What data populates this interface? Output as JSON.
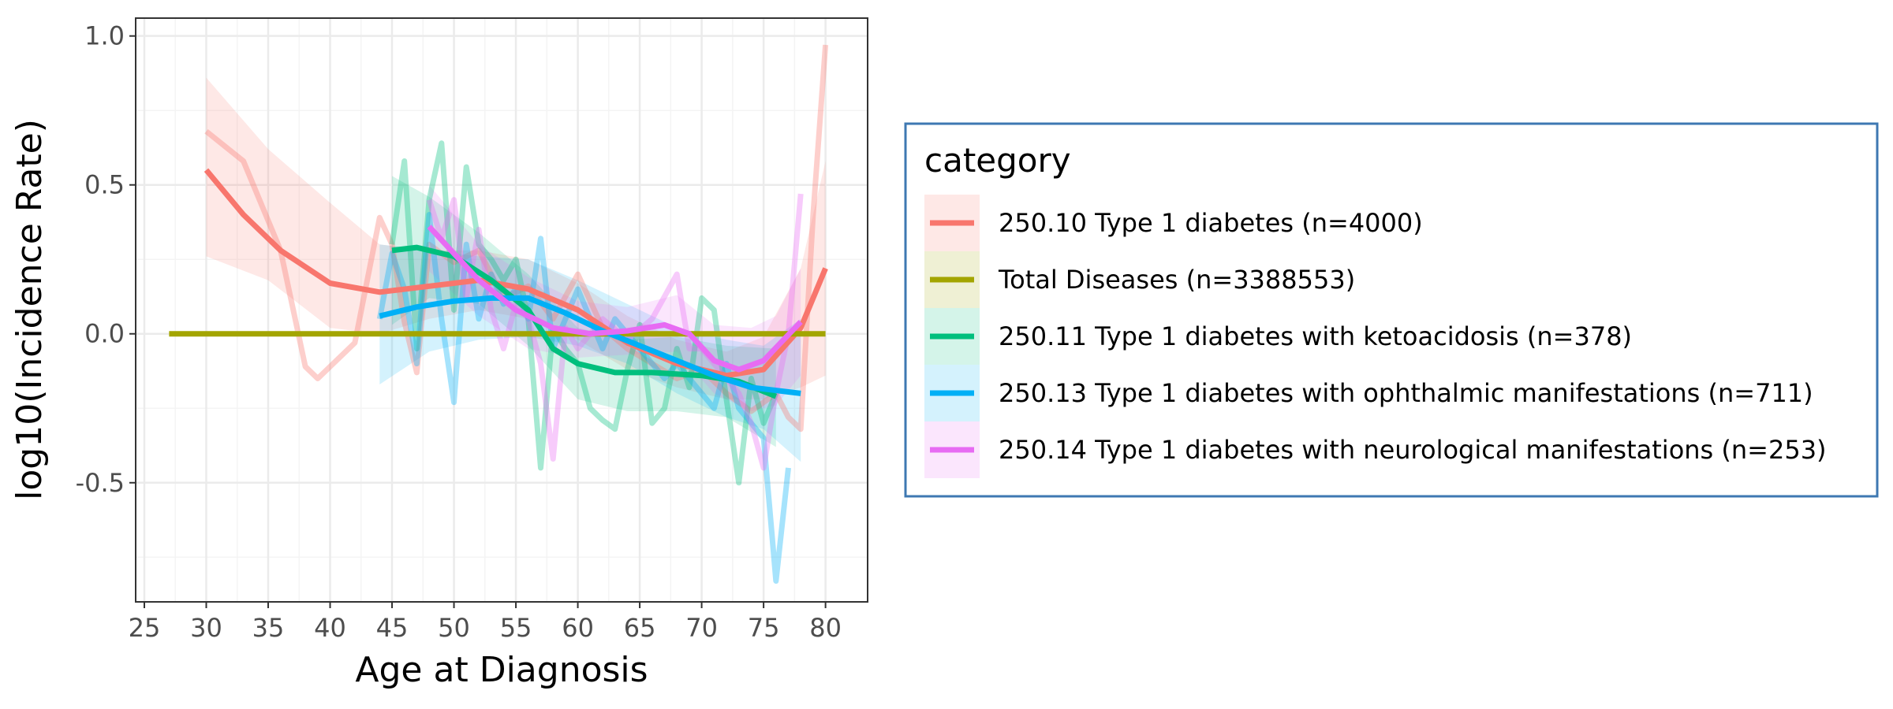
{
  "chart_data": {
    "type": "line",
    "xlabel": "Age at Diagnosis",
    "ylabel": "log10(Incidence Rate)",
    "xlim": [
      24.3,
      83.4
    ],
    "ylim": [
      -0.9,
      1.06
    ],
    "x_ticks": [
      25,
      30,
      35,
      40,
      45,
      50,
      55,
      60,
      65,
      70,
      75,
      80
    ],
    "y_ticks": [
      1.0,
      0.5,
      0.0,
      -0.5
    ],
    "y_tick_labels": [
      "1.0",
      "0.5",
      "0.0",
      "-0.5"
    ],
    "grid": true,
    "legend": {
      "title": "category",
      "position": "right",
      "entries": [
        "250.10 Type 1 diabetes (n=4000)",
        "Total Diseases (n=3388553)",
        "250.11 Type 1 diabetes with ketoacidosis (n=378)",
        "250.13 Type 1 diabetes with ophthalmic manifestations (n=711)",
        "250.14 Type 1 diabetes with neurological manifestations (n=253)"
      ]
    },
    "series": [
      {
        "name": "250.10 Type 1 diabetes (n=4000)",
        "color": "#F8766D",
        "raw": [
          [
            30,
            0.68
          ],
          [
            33,
            0.58
          ],
          [
            36,
            0.28
          ],
          [
            38,
            -0.11
          ],
          [
            39,
            -0.15
          ],
          [
            42,
            -0.03
          ],
          [
            44,
            0.39
          ],
          [
            45,
            0.3
          ],
          [
            46,
            0.04
          ],
          [
            47,
            -0.13
          ],
          [
            48,
            0.3
          ],
          [
            50,
            0.24
          ],
          [
            52,
            0.28
          ],
          [
            54,
            0.12
          ],
          [
            56,
            0.16
          ],
          [
            58,
            0.05
          ],
          [
            60,
            0.2
          ],
          [
            62,
            0.02
          ],
          [
            64,
            -0.05
          ],
          [
            66,
            -0.1
          ],
          [
            68,
            -0.15
          ],
          [
            70,
            -0.12
          ],
          [
            72,
            -0.2
          ],
          [
            74,
            -0.26
          ],
          [
            76,
            -0.2
          ],
          [
            77,
            -0.28
          ],
          [
            78,
            -0.32
          ],
          [
            79,
            0.4
          ],
          [
            80,
            0.97
          ]
        ],
        "smooth": [
          [
            30,
            0.55
          ],
          [
            33,
            0.4
          ],
          [
            36,
            0.28
          ],
          [
            40,
            0.17
          ],
          [
            44,
            0.14
          ],
          [
            48,
            0.16
          ],
          [
            52,
            0.18
          ],
          [
            56,
            0.15
          ],
          [
            60,
            0.08
          ],
          [
            64,
            -0.03
          ],
          [
            68,
            -0.1
          ],
          [
            72,
            -0.14
          ],
          [
            75,
            -0.12
          ],
          [
            78,
            0.02
          ],
          [
            80,
            0.22
          ]
        ],
        "band": [
          [
            30,
            0.86,
            0.26
          ],
          [
            35,
            0.62,
            0.18
          ],
          [
            40,
            0.44,
            0.02
          ],
          [
            44,
            0.3,
            0.0
          ],
          [
            48,
            0.28,
            0.05
          ],
          [
            52,
            0.28,
            0.08
          ],
          [
            56,
            0.25,
            0.05
          ],
          [
            60,
            0.17,
            -0.02
          ],
          [
            64,
            0.06,
            -0.12
          ],
          [
            68,
            -0.02,
            -0.18
          ],
          [
            72,
            -0.06,
            -0.22
          ],
          [
            75,
            -0.01,
            -0.22
          ],
          [
            78,
            0.22,
            -0.18
          ],
          [
            80,
            0.58,
            -0.14
          ]
        ]
      },
      {
        "name": "Total Diseases (n=3388553)",
        "color": "#A3A500",
        "raw": [
          [
            27,
            0.0
          ],
          [
            80,
            0.0
          ]
        ],
        "smooth": [
          [
            27,
            0.0
          ],
          [
            80,
            0.0
          ]
        ],
        "band": []
      },
      {
        "name": "250.11 Type 1 diabetes with ketoacidosis (n=378)",
        "color": "#00BF7D",
        "raw": [
          [
            45,
            0.3
          ],
          [
            46,
            0.58
          ],
          [
            47,
            -0.05
          ],
          [
            48,
            0.45
          ],
          [
            49,
            0.64
          ],
          [
            50,
            0.08
          ],
          [
            51,
            0.56
          ],
          [
            52,
            0.3
          ],
          [
            53,
            0.25
          ],
          [
            54,
            0.18
          ],
          [
            55,
            0.25
          ],
          [
            56,
            0.05
          ],
          [
            57,
            -0.45
          ],
          [
            58,
            0.02
          ],
          [
            59,
            -0.05
          ],
          [
            60,
            -0.1
          ],
          [
            61,
            -0.25
          ],
          [
            62,
            -0.29
          ],
          [
            63,
            -0.32
          ],
          [
            64,
            -0.12
          ],
          [
            65,
            0.03
          ],
          [
            66,
            -0.3
          ],
          [
            67,
            -0.25
          ],
          [
            68,
            -0.05
          ],
          [
            69,
            -0.18
          ],
          [
            70,
            0.12
          ],
          [
            71,
            0.08
          ],
          [
            72,
            -0.22
          ],
          [
            73,
            -0.5
          ],
          [
            74,
            -0.15
          ],
          [
            75,
            -0.3
          ],
          [
            76,
            -0.2
          ]
        ],
        "smooth": [
          [
            45,
            0.28
          ],
          [
            47,
            0.29
          ],
          [
            50,
            0.26
          ],
          [
            53,
            0.18
          ],
          [
            56,
            0.08
          ],
          [
            58,
            -0.05
          ],
          [
            60,
            -0.1
          ],
          [
            63,
            -0.13
          ],
          [
            66,
            -0.13
          ],
          [
            70,
            -0.14
          ],
          [
            73,
            -0.16
          ],
          [
            76,
            -0.21
          ]
        ],
        "band": [
          [
            45,
            0.53,
            0.03
          ],
          [
            48,
            0.46,
            0.12
          ],
          [
            52,
            0.34,
            0.1
          ],
          [
            56,
            0.2,
            -0.04
          ],
          [
            60,
            0.02,
            -0.22
          ],
          [
            64,
            -0.02,
            -0.26
          ],
          [
            68,
            -0.01,
            -0.26
          ],
          [
            72,
            -0.04,
            -0.28
          ],
          [
            76,
            -0.05,
            -0.38
          ]
        ]
      },
      {
        "name": "250.13 Type 1 diabetes with ophthalmic manifestations (n=711)",
        "color": "#00B0F6",
        "raw": [
          [
            44,
            0.05
          ],
          [
            45,
            0.27
          ],
          [
            46,
            0.15
          ],
          [
            47,
            -0.1
          ],
          [
            48,
            0.4
          ],
          [
            49,
            0.05
          ],
          [
            50,
            -0.23
          ],
          [
            51,
            0.3
          ],
          [
            52,
            0.05
          ],
          [
            53,
            0.2
          ],
          [
            54,
            0.1
          ],
          [
            55,
            0.15
          ],
          [
            56,
            0.05
          ],
          [
            57,
            0.32
          ],
          [
            58,
            -0.05
          ],
          [
            60,
            0.15
          ],
          [
            62,
            -0.05
          ],
          [
            63,
            0.05
          ],
          [
            65,
            -0.05
          ],
          [
            67,
            -0.15
          ],
          [
            68,
            -0.1
          ],
          [
            70,
            -0.2
          ],
          [
            71,
            -0.25
          ],
          [
            72,
            -0.1
          ],
          [
            73,
            -0.25
          ],
          [
            74,
            -0.3
          ],
          [
            75,
            -0.35
          ],
          [
            76,
            -0.83
          ],
          [
            77,
            -0.45
          ]
        ],
        "smooth": [
          [
            44,
            0.06
          ],
          [
            47,
            0.09
          ],
          [
            50,
            0.11
          ],
          [
            53,
            0.12
          ],
          [
            56,
            0.12
          ],
          [
            59,
            0.07
          ],
          [
            62,
            0.01
          ],
          [
            65,
            -0.04
          ],
          [
            68,
            -0.09
          ],
          [
            71,
            -0.14
          ],
          [
            74,
            -0.18
          ],
          [
            78,
            -0.2
          ]
        ],
        "band": [
          [
            44,
            0.3,
            -0.17
          ],
          [
            48,
            0.28,
            -0.06
          ],
          [
            52,
            0.26,
            -0.02
          ],
          [
            56,
            0.25,
            -0.01
          ],
          [
            60,
            0.18,
            -0.04
          ],
          [
            64,
            0.1,
            -0.1
          ],
          [
            68,
            0.02,
            -0.2
          ],
          [
            72,
            -0.02,
            -0.28
          ],
          [
            75,
            -0.04,
            -0.32
          ],
          [
            78,
            0.05,
            -0.43
          ]
        ]
      },
      {
        "name": "250.14 Type 1 diabetes with neurological manifestations (n=253)",
        "color": "#E76BF3",
        "raw": [
          [
            48,
            0.45
          ],
          [
            49,
            0.32
          ],
          [
            50,
            0.45
          ],
          [
            51,
            0.12
          ],
          [
            52,
            0.35
          ],
          [
            53,
            0.08
          ],
          [
            54,
            -0.05
          ],
          [
            55,
            0.1
          ],
          [
            56,
            0.05
          ],
          [
            57,
            -0.1
          ],
          [
            58,
            -0.42
          ],
          [
            59,
            0.02
          ],
          [
            60,
            -0.05
          ],
          [
            62,
            0.05
          ],
          [
            64,
            -0.02
          ],
          [
            66,
            0.05
          ],
          [
            68,
            0.2
          ],
          [
            69,
            -0.05
          ],
          [
            70,
            -0.05
          ],
          [
            71,
            -0.1
          ],
          [
            72,
            -0.15
          ],
          [
            73,
            -0.2
          ],
          [
            74,
            -0.3
          ],
          [
            75,
            -0.45
          ],
          [
            76,
            -0.2
          ],
          [
            77,
            0.0
          ],
          [
            78,
            0.47
          ]
        ],
        "smooth": [
          [
            48,
            0.36
          ],
          [
            50,
            0.27
          ],
          [
            52,
            0.18
          ],
          [
            55,
            0.08
          ],
          [
            58,
            0.02
          ],
          [
            61,
            0.0
          ],
          [
            64,
            0.01
          ],
          [
            67,
            0.03
          ],
          [
            69,
            0.0
          ],
          [
            71,
            -0.09
          ],
          [
            73,
            -0.12
          ],
          [
            75,
            -0.09
          ],
          [
            78,
            0.04
          ]
        ],
        "band": [
          [
            48,
            0.5,
            0.21
          ],
          [
            52,
            0.3,
            0.06
          ],
          [
            56,
            0.19,
            -0.05
          ],
          [
            60,
            0.11,
            -0.08
          ],
          [
            64,
            0.09,
            -0.07
          ],
          [
            68,
            0.13,
            -0.06
          ],
          [
            71,
            0.03,
            -0.2
          ],
          [
            74,
            0.02,
            -0.26
          ],
          [
            76,
            0.06,
            -0.24
          ],
          [
            78,
            0.22,
            -0.14
          ]
        ]
      }
    ]
  }
}
